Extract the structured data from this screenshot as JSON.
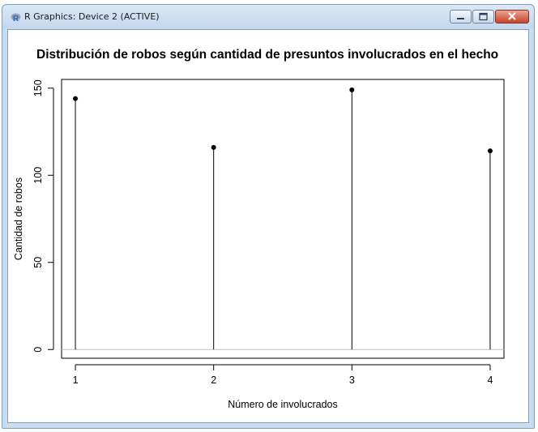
{
  "window": {
    "title": "R Graphics: Device 2 (ACTIVE)",
    "icon": "r-logo-icon"
  },
  "buttons": {
    "minimize_icon": "minimize-icon",
    "maximize_icon": "maximize-icon",
    "close_icon": "close-icon"
  },
  "colors": {
    "titlebar": "#c3d7ee",
    "r_logo": "#276dc3",
    "close_button": "#c7442c",
    "zero_line": "#bebebe"
  },
  "chart_data": {
    "type": "scatter",
    "style": "lollipop (vertical lines with filled points)",
    "title": "Distribución de robos según cantidad de presuntos involucrados en el hecho",
    "xlabel": "Número de involucrados",
    "ylabel": "Cantidad de robos",
    "x": [
      1,
      2,
      3,
      4
    ],
    "y": [
      144,
      116,
      149,
      114
    ],
    "x_ticks": [
      "1",
      "2",
      "3",
      "4"
    ],
    "y_ticks": [
      "0",
      "50",
      "100",
      "150"
    ],
    "xlim": [
      0.9,
      4.1
    ],
    "ylim": [
      -5,
      155
    ],
    "horizontal_line_at": 0,
    "grid": false,
    "legend": "none"
  }
}
